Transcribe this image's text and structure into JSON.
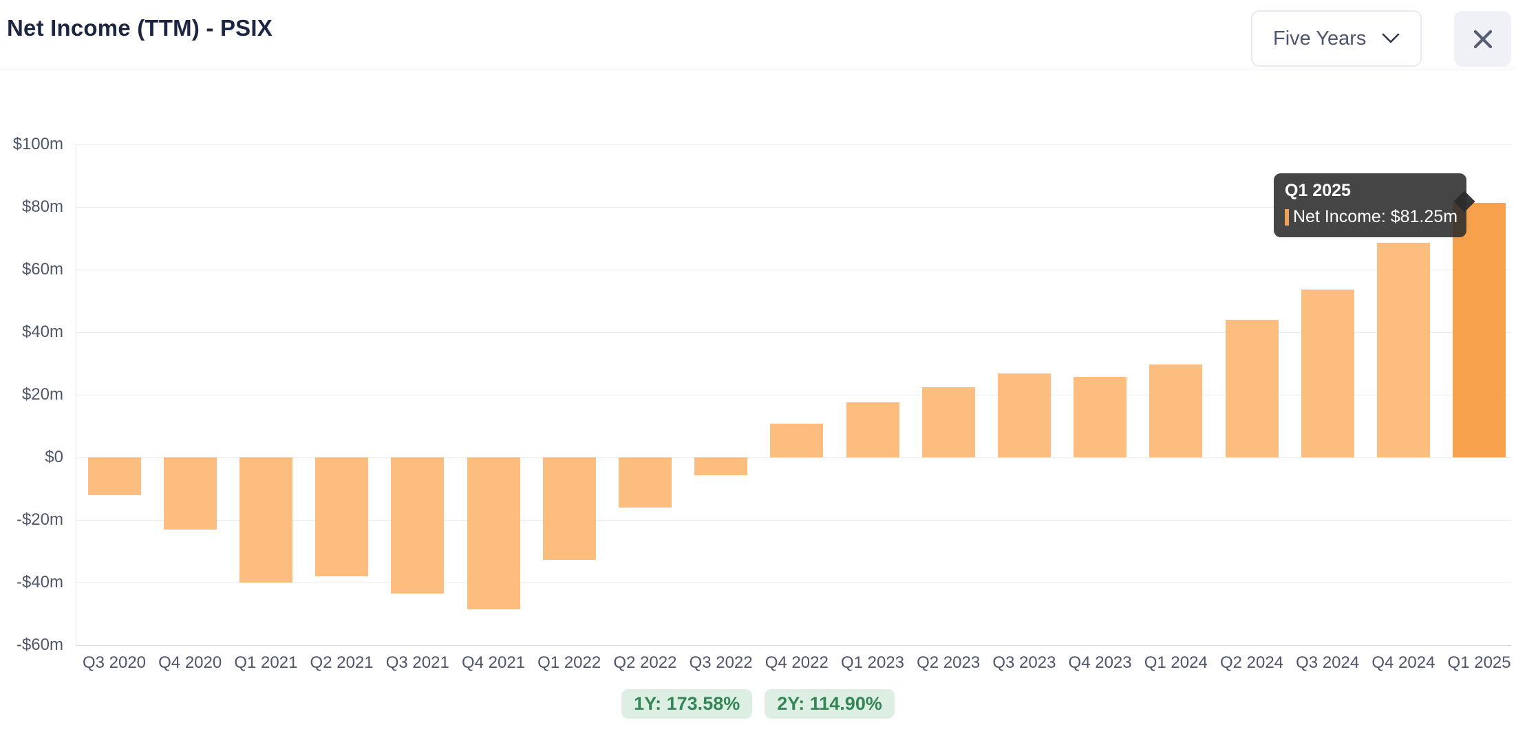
{
  "header": {
    "title": "Net Income (TTM) - PSIX",
    "range_selector": {
      "value": "Five Years"
    }
  },
  "icons": {
    "chevron": "chevron-down-icon",
    "close": "close-icon"
  },
  "tooltip": {
    "title": "Q1 2025",
    "series": "Net Income",
    "value": "$81.25m",
    "label": "Net Income: $81.25m"
  },
  "badges": [
    {
      "label": "1Y: 173.58%"
    },
    {
      "label": "2Y: 114.90%"
    }
  ],
  "colors": {
    "bar": "#fdbd7e",
    "bar_highlight": "#f8a14c",
    "badge_bg": "#dcefe2",
    "badge_text": "#338757",
    "tooltip_bg": "#2b2b2b",
    "title_text": "#1c2642",
    "axis_text": "#4f566b"
  },
  "chart_data": {
    "type": "bar",
    "title": "Net Income (TTM) - PSIX",
    "series_name": "Net Income",
    "unit": "USD millions",
    "categories": [
      "Q3 2020",
      "Q4 2020",
      "Q1 2021",
      "Q2 2021",
      "Q3 2021",
      "Q4 2021",
      "Q1 2022",
      "Q2 2022",
      "Q3 2022",
      "Q4 2022",
      "Q1 2023",
      "Q2 2023",
      "Q3 2023",
      "Q4 2023",
      "Q1 2024",
      "Q2 2024",
      "Q3 2024",
      "Q4 2024",
      "Q1 2025"
    ],
    "values": [
      -12,
      -23,
      -40,
      -38,
      -43.5,
      -48.5,
      -32.8,
      -16,
      -5.8,
      10.8,
      17.6,
      22.4,
      26.8,
      25.7,
      29.7,
      44,
      53.6,
      68.6,
      81.25
    ],
    "highlighted_category": "Q1 2025",
    "highlighted_value_label": "$81.25m",
    "xlabel": "",
    "ylabel": "",
    "ylim": [
      -60,
      100
    ],
    "yticks": [
      100,
      80,
      60,
      40,
      20,
      0,
      -20,
      -40,
      -60
    ],
    "ytick_labels": [
      "$100m",
      "$80m",
      "$60m",
      "$40m",
      "$20m",
      "$0",
      "-$20m",
      "-$40m",
      "-$60m"
    ],
    "grid": true,
    "legend_position": "none"
  }
}
